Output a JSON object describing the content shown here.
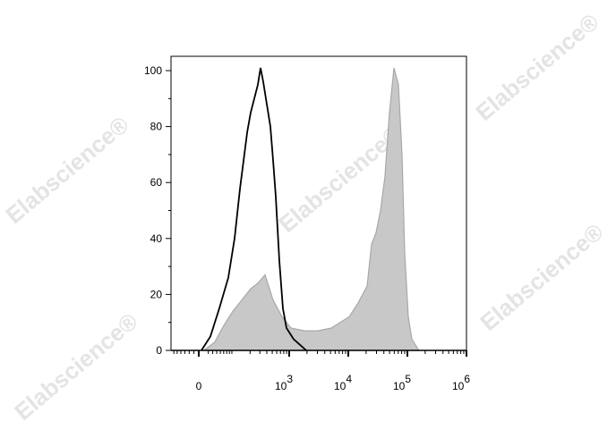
{
  "watermark": "Elabscience®",
  "chart_data": {
    "type": "area",
    "title": "",
    "xlabel": "",
    "ylabel": "",
    "x_scale": "biexponential",
    "xlim": [
      -20,
      1000000
    ],
    "ylim": [
      0,
      105
    ],
    "grid": false,
    "legend": "none",
    "y_ticks": [
      0,
      20,
      40,
      60,
      80,
      100
    ],
    "x_ticks": [
      {
        "value": 0,
        "base": "0",
        "exp": ""
      },
      {
        "value": 1000,
        "base": "10",
        "exp": "3"
      },
      {
        "value": 10000,
        "base": "10",
        "exp": "4"
      },
      {
        "value": 100000,
        "base": "10",
        "exp": "5"
      },
      {
        "value": 1000000,
        "base": "10",
        "exp": "6"
      }
    ],
    "series": [
      {
        "style": "filled",
        "color": "#c8c8c8",
        "stroke": "#a8a8a8",
        "x": [
          11,
          35,
          61,
          94,
          140,
          205,
          276,
          372,
          517,
          746,
          1072,
          1810,
          3055,
          5150,
          7310,
          10350,
          14690,
          20800,
          24800,
          29500,
          35100,
          41700,
          49800,
          59300,
          70500,
          81100,
          90100,
          103600,
          119000,
          157000
        ],
        "y": [
          0,
          3,
          9,
          14,
          18,
          22,
          24,
          27,
          18,
          12,
          8,
          7,
          7,
          8,
          10,
          12,
          17,
          23,
          38,
          42,
          50,
          62,
          85,
          101,
          95,
          70,
          35,
          12,
          4,
          0
        ]
      },
      {
        "style": "line",
        "color": "#000000",
        "x": [
          5.5,
          24.6,
          47,
          76,
          102,
          130,
          152,
          177,
          205,
          238,
          276,
          309,
          345,
          400,
          463,
          517,
          578,
          669,
          774,
          896,
          1191,
          1520,
          1940
        ],
        "y": [
          0,
          5,
          15,
          26,
          40,
          58,
          68,
          78,
          85,
          90,
          95,
          101,
          96,
          88,
          80,
          68,
          55,
          32,
          15,
          8,
          4,
          2,
          0
        ]
      }
    ]
  }
}
